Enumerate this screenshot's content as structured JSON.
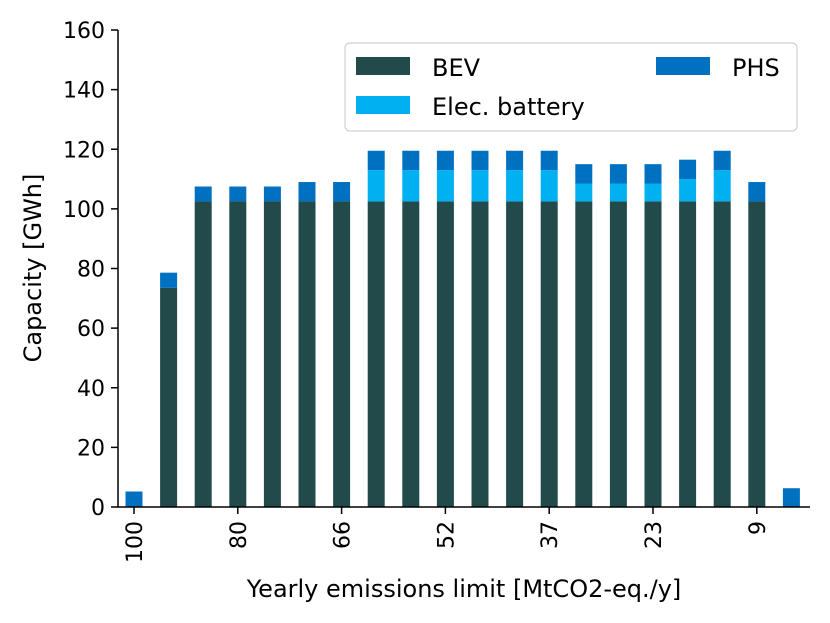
{
  "chart_data": {
    "type": "bar",
    "stacked": true,
    "title": "",
    "xlabel": "Yearly emissions limit [MtCO2-eq./y]",
    "ylabel": "Capacity [GWh]",
    "ylim": [
      0,
      160
    ],
    "yticks": [
      0,
      20,
      40,
      60,
      80,
      100,
      120,
      140,
      160
    ],
    "grid": false,
    "legend_position": "top-right",
    "categories": [
      "100",
      "",
      "",
      "80",
      "",
      "",
      "66",
      "",
      "",
      "52",
      "",
      "",
      "37",
      "",
      "",
      "23",
      "",
      "",
      "9",
      ""
    ],
    "series": [
      {
        "name": "BEV",
        "color": "#224a4a",
        "values": [
          0,
          73.5,
          102.5,
          102.5,
          102.5,
          102.5,
          102.5,
          102.5,
          102.5,
          102.5,
          102.5,
          102.5,
          102.5,
          102.5,
          102.5,
          102.5,
          102.5,
          102.5,
          102.5,
          0
        ]
      },
      {
        "name": "Elec. battery",
        "color": "#00b0f0",
        "values": [
          0,
          0,
          0,
          0,
          0,
          0,
          0,
          10.5,
          10.5,
          10.5,
          10.5,
          10.5,
          10.5,
          6,
          6,
          6,
          7.5,
          10.5,
          0,
          0
        ]
      },
      {
        "name": "PHS",
        "color": "#0070c0",
        "values": [
          5.2,
          5.1,
          5.0,
          5.0,
          5.0,
          6.5,
          6.5,
          6.5,
          6.5,
          6.5,
          6.5,
          6.5,
          6.5,
          6.5,
          6.5,
          6.5,
          6.5,
          6.5,
          6.5,
          6.3
        ]
      }
    ]
  }
}
